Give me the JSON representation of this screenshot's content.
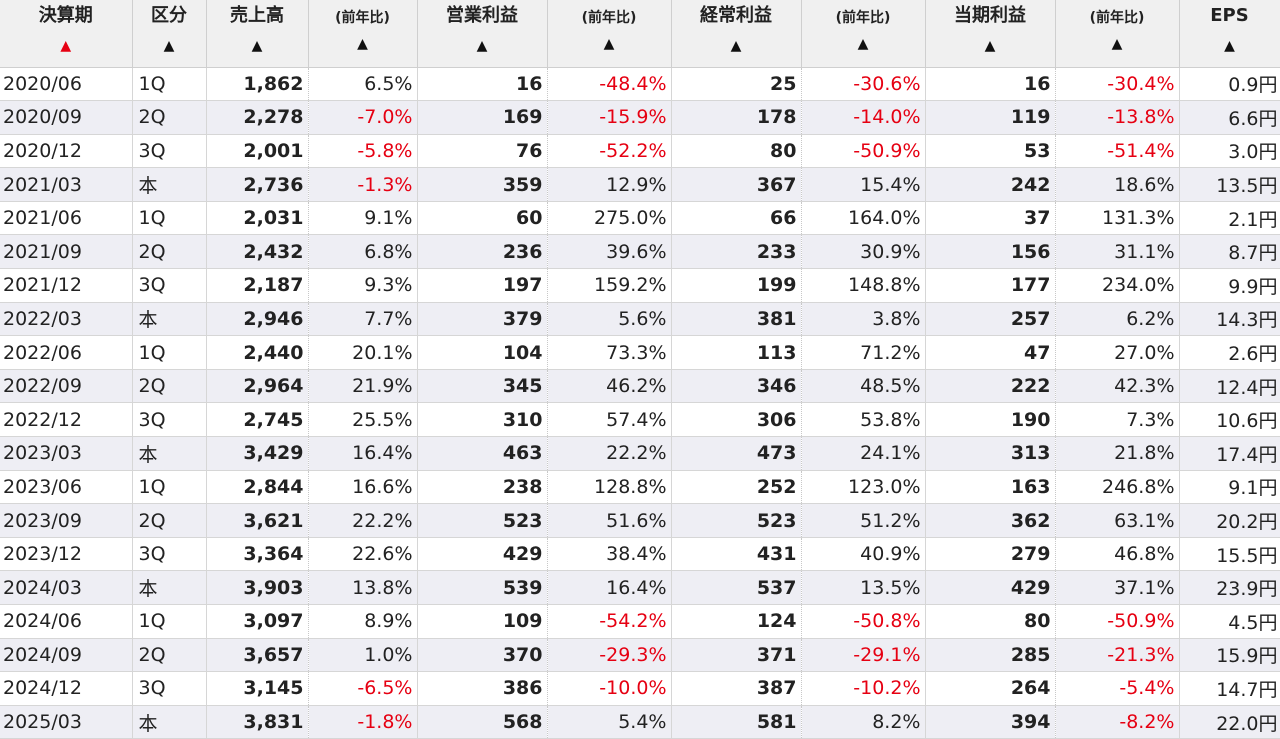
{
  "colors": {
    "negative": "#e60012",
    "active_sort": "#e60012",
    "header_bg": "#f0f0f0",
    "row_alt_bg": "#eeeef4"
  },
  "headers": {
    "period": "決算期",
    "kubun": "区分",
    "sales": "売上高",
    "sales_yoy": "(前年比)",
    "op_profit": "営業利益",
    "op_yoy": "(前年比)",
    "ord_profit": "経常利益",
    "ord_yoy": "(前年比)",
    "net_profit": "当期利益",
    "net_yoy": "(前年比)",
    "eps": "EPS"
  },
  "sort_arrow": "▲",
  "active_sort_column": "period",
  "rows": [
    {
      "period": "2020/06",
      "kubun": "1Q",
      "sales": "1,862",
      "sales_yoy": "6.5%",
      "op": "16",
      "op_yoy": "-48.4%",
      "ord": "25",
      "ord_yoy": "-30.6%",
      "net": "16",
      "net_yoy": "-30.4%",
      "eps": "0.9円"
    },
    {
      "period": "2020/09",
      "kubun": "2Q",
      "sales": "2,278",
      "sales_yoy": "-7.0%",
      "op": "169",
      "op_yoy": "-15.9%",
      "ord": "178",
      "ord_yoy": "-14.0%",
      "net": "119",
      "net_yoy": "-13.8%",
      "eps": "6.6円"
    },
    {
      "period": "2020/12",
      "kubun": "3Q",
      "sales": "2,001",
      "sales_yoy": "-5.8%",
      "op": "76",
      "op_yoy": "-52.2%",
      "ord": "80",
      "ord_yoy": "-50.9%",
      "net": "53",
      "net_yoy": "-51.4%",
      "eps": "3.0円"
    },
    {
      "period": "2021/03",
      "kubun": "本",
      "sales": "2,736",
      "sales_yoy": "-1.3%",
      "op": "359",
      "op_yoy": "12.9%",
      "ord": "367",
      "ord_yoy": "15.4%",
      "net": "242",
      "net_yoy": "18.6%",
      "eps": "13.5円"
    },
    {
      "period": "2021/06",
      "kubun": "1Q",
      "sales": "2,031",
      "sales_yoy": "9.1%",
      "op": "60",
      "op_yoy": "275.0%",
      "ord": "66",
      "ord_yoy": "164.0%",
      "net": "37",
      "net_yoy": "131.3%",
      "eps": "2.1円"
    },
    {
      "period": "2021/09",
      "kubun": "2Q",
      "sales": "2,432",
      "sales_yoy": "6.8%",
      "op": "236",
      "op_yoy": "39.6%",
      "ord": "233",
      "ord_yoy": "30.9%",
      "net": "156",
      "net_yoy": "31.1%",
      "eps": "8.7円"
    },
    {
      "period": "2021/12",
      "kubun": "3Q",
      "sales": "2,187",
      "sales_yoy": "9.3%",
      "op": "197",
      "op_yoy": "159.2%",
      "ord": "199",
      "ord_yoy": "148.8%",
      "net": "177",
      "net_yoy": "234.0%",
      "eps": "9.9円"
    },
    {
      "period": "2022/03",
      "kubun": "本",
      "sales": "2,946",
      "sales_yoy": "7.7%",
      "op": "379",
      "op_yoy": "5.6%",
      "ord": "381",
      "ord_yoy": "3.8%",
      "net": "257",
      "net_yoy": "6.2%",
      "eps": "14.3円"
    },
    {
      "period": "2022/06",
      "kubun": "1Q",
      "sales": "2,440",
      "sales_yoy": "20.1%",
      "op": "104",
      "op_yoy": "73.3%",
      "ord": "113",
      "ord_yoy": "71.2%",
      "net": "47",
      "net_yoy": "27.0%",
      "eps": "2.6円"
    },
    {
      "period": "2022/09",
      "kubun": "2Q",
      "sales": "2,964",
      "sales_yoy": "21.9%",
      "op": "345",
      "op_yoy": "46.2%",
      "ord": "346",
      "ord_yoy": "48.5%",
      "net": "222",
      "net_yoy": "42.3%",
      "eps": "12.4円"
    },
    {
      "period": "2022/12",
      "kubun": "3Q",
      "sales": "2,745",
      "sales_yoy": "25.5%",
      "op": "310",
      "op_yoy": "57.4%",
      "ord": "306",
      "ord_yoy": "53.8%",
      "net": "190",
      "net_yoy": "7.3%",
      "eps": "10.6円"
    },
    {
      "period": "2023/03",
      "kubun": "本",
      "sales": "3,429",
      "sales_yoy": "16.4%",
      "op": "463",
      "op_yoy": "22.2%",
      "ord": "473",
      "ord_yoy": "24.1%",
      "net": "313",
      "net_yoy": "21.8%",
      "eps": "17.4円"
    },
    {
      "period": "2023/06",
      "kubun": "1Q",
      "sales": "2,844",
      "sales_yoy": "16.6%",
      "op": "238",
      "op_yoy": "128.8%",
      "ord": "252",
      "ord_yoy": "123.0%",
      "net": "163",
      "net_yoy": "246.8%",
      "eps": "9.1円"
    },
    {
      "period": "2023/09",
      "kubun": "2Q",
      "sales": "3,621",
      "sales_yoy": "22.2%",
      "op": "523",
      "op_yoy": "51.6%",
      "ord": "523",
      "ord_yoy": "51.2%",
      "net": "362",
      "net_yoy": "63.1%",
      "eps": "20.2円"
    },
    {
      "period": "2023/12",
      "kubun": "3Q",
      "sales": "3,364",
      "sales_yoy": "22.6%",
      "op": "429",
      "op_yoy": "38.4%",
      "ord": "431",
      "ord_yoy": "40.9%",
      "net": "279",
      "net_yoy": "46.8%",
      "eps": "15.5円"
    },
    {
      "period": "2024/03",
      "kubun": "本",
      "sales": "3,903",
      "sales_yoy": "13.8%",
      "op": "539",
      "op_yoy": "16.4%",
      "ord": "537",
      "ord_yoy": "13.5%",
      "net": "429",
      "net_yoy": "37.1%",
      "eps": "23.9円"
    },
    {
      "period": "2024/06",
      "kubun": "1Q",
      "sales": "3,097",
      "sales_yoy": "8.9%",
      "op": "109",
      "op_yoy": "-54.2%",
      "ord": "124",
      "ord_yoy": "-50.8%",
      "net": "80",
      "net_yoy": "-50.9%",
      "eps": "4.5円"
    },
    {
      "period": "2024/09",
      "kubun": "2Q",
      "sales": "3,657",
      "sales_yoy": "1.0%",
      "op": "370",
      "op_yoy": "-29.3%",
      "ord": "371",
      "ord_yoy": "-29.1%",
      "net": "285",
      "net_yoy": "-21.3%",
      "eps": "15.9円"
    },
    {
      "period": "2024/12",
      "kubun": "3Q",
      "sales": "3,145",
      "sales_yoy": "-6.5%",
      "op": "386",
      "op_yoy": "-10.0%",
      "ord": "387",
      "ord_yoy": "-10.2%",
      "net": "264",
      "net_yoy": "-5.4%",
      "eps": "14.7円"
    },
    {
      "period": "2025/03",
      "kubun": "本",
      "sales": "3,831",
      "sales_yoy": "-1.8%",
      "op": "568",
      "op_yoy": "5.4%",
      "ord": "581",
      "ord_yoy": "8.2%",
      "net": "394",
      "net_yoy": "-8.2%",
      "eps": "22.0円"
    }
  ]
}
